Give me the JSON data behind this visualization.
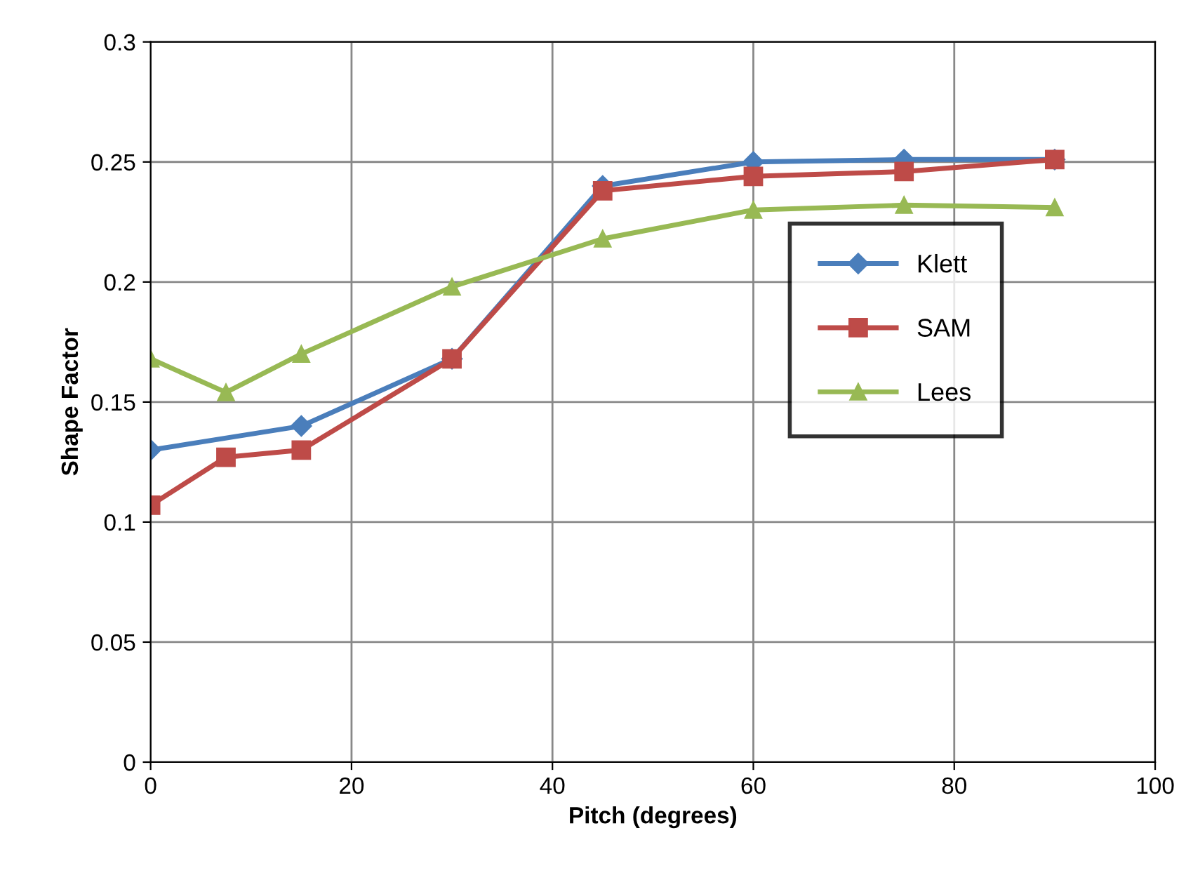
{
  "chart_data": {
    "type": "line",
    "xlabel": "Pitch (degrees)",
    "ylabel": "Shape Factor",
    "series": [
      {
        "name": "Klett",
        "color": "#4a7ebb",
        "marker": "diamond",
        "x": [
          0,
          15,
          30,
          45,
          60,
          75,
          90
        ],
        "values": [
          0.13,
          0.14,
          0.168,
          0.24,
          0.25,
          0.251,
          0.251
        ]
      },
      {
        "name": "SAM",
        "color": "#be4b48",
        "marker": "square",
        "x": [
          0,
          7.5,
          15,
          30,
          45,
          60,
          75,
          90
        ],
        "values": [
          0.107,
          0.127,
          0.13,
          0.168,
          0.238,
          0.244,
          0.246,
          0.251
        ]
      },
      {
        "name": "Lees",
        "color": "#98b954",
        "marker": "triangle",
        "x": [
          0,
          7.5,
          15,
          30,
          45,
          60,
          75,
          90
        ],
        "values": [
          0.168,
          0.154,
          0.17,
          0.198,
          0.218,
          0.23,
          0.232,
          0.231
        ]
      }
    ],
    "xlim": [
      0,
      100
    ],
    "xticks": [
      0,
      20,
      40,
      60,
      80,
      100
    ],
    "ylim": [
      0,
      0.3
    ],
    "yticks": [
      0,
      0.05,
      0.1,
      0.15,
      0.2,
      0.25,
      0.3
    ],
    "grid": true,
    "legend": "right",
    "line_style": "solid"
  }
}
